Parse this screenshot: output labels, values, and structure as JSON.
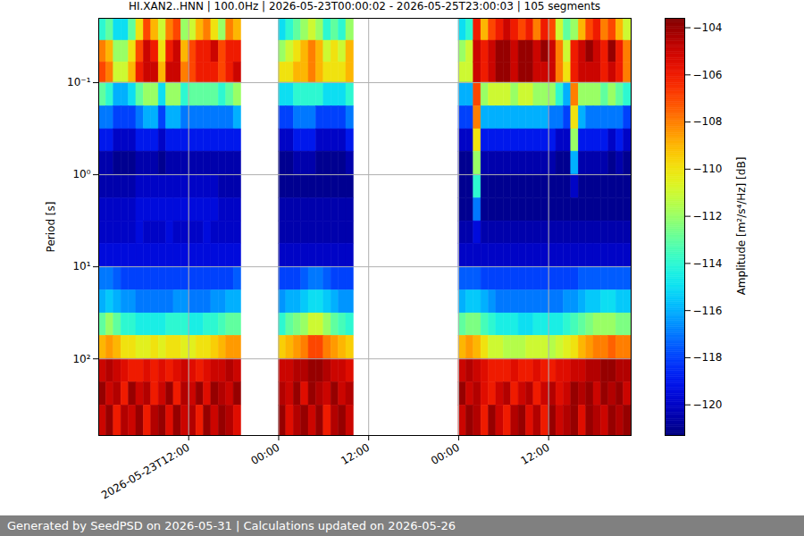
{
  "chart_data": {
    "type": "heatmap",
    "title": "HI.XAN2..HNN | 100.0Hz | 2026-05-23T00:00:02 - 2026-05-25T23:00:03 | 105 segments",
    "caption": "Generated by SeedPSD on 2026-05-31 | Calculations updated on 2026-05-26",
    "y_label": "Period [s]",
    "colorbar_label": "Amplitude [m²/s⁴/Hz] [dB]",
    "log": "y",
    "grid": true,
    "x": [
      "2026-05-23T00:00",
      "2026-05-23T01:00",
      "2026-05-23T02:00",
      "2026-05-23T03:00",
      "2026-05-23T04:00",
      "2026-05-23T05:00",
      "2026-05-23T06:00",
      "2026-05-23T07:00",
      "2026-05-23T08:00",
      "2026-05-23T09:00",
      "2026-05-23T10:00",
      "2026-05-23T11:00",
      "2026-05-23T12:00",
      "2026-05-23T13:00",
      "2026-05-23T14:00",
      "2026-05-23T15:00",
      "2026-05-23T16:00",
      "2026-05-23T17:00",
      "2026-05-23T18:00",
      "2026-05-24T00:00",
      "2026-05-24T01:00",
      "2026-05-24T02:00",
      "2026-05-24T03:00",
      "2026-05-24T04:00",
      "2026-05-24T05:00",
      "2026-05-24T06:00",
      "2026-05-24T07:00",
      "2026-05-24T08:00",
      "2026-05-24T09:00",
      "2026-05-25T00:00",
      "2026-05-25T01:00",
      "2026-05-25T02:00",
      "2026-05-25T03:00",
      "2026-05-25T04:00",
      "2026-05-25T05:00",
      "2026-05-25T06:00",
      "2026-05-25T07:00",
      "2026-05-25T08:00",
      "2026-05-25T09:00",
      "2026-05-25T10:00",
      "2026-05-25T11:00",
      "2026-05-25T12:00",
      "2026-05-25T13:00",
      "2026-05-25T14:00",
      "2026-05-25T15:00",
      "2026-05-25T16:00",
      "2026-05-25T17:00",
      "2026-05-25T18:00",
      "2026-05-25T19:00",
      "2026-05-25T20:00",
      "2026-05-25T21:00",
      "2026-05-25T22:00"
    ],
    "period_edges": [
      0.02,
      0.035,
      0.06,
      0.1,
      0.18,
      0.32,
      0.56,
      1,
      1.8,
      3.2,
      5.6,
      10,
      18,
      32,
      56,
      100,
      180,
      320,
      680
    ],
    "values": [
      [
        -114,
        -113,
        -115,
        -115,
        -113,
        -110,
        -107,
        -109,
        -111,
        -108,
        -107,
        -112,
        -111,
        -109,
        -108,
        -110,
        -112,
        -108,
        -109,
        -115,
        -114,
        -113,
        -112,
        -111,
        -112,
        -114,
        -113,
        -114,
        -112,
        -115,
        -114,
        -106,
        -109,
        -107,
        -106,
        -105,
        -106,
        -107,
        -106,
        -108,
        -106,
        -107,
        -111,
        -113,
        -112,
        -109,
        -107,
        -106,
        -108,
        -107,
        -109,
        -111
      ],
      [
        -108,
        -109,
        -112,
        -112,
        -110,
        -107,
        -105,
        -106,
        -110,
        -106,
        -105,
        -109,
        -107,
        -106,
        -106,
        -105,
        -107,
        -106,
        -106,
        -112,
        -111,
        -110,
        -109,
        -108,
        -109,
        -111,
        -110,
        -111,
        -109,
        -112,
        -111,
        -105,
        -106,
        -105,
        -104,
        -104,
        -105,
        -104,
        -104,
        -105,
        -104,
        -105,
        -108,
        -111,
        -106,
        -105,
        -104,
        -105,
        -106,
        -104,
        -106,
        -108
      ],
      [
        -107,
        -108,
        -111,
        -111,
        -109,
        -106,
        -105,
        -105,
        -109,
        -105,
        -105,
        -108,
        -107,
        -106,
        -106,
        -106,
        -107,
        -106,
        -105,
        -110,
        -110,
        -109,
        -109,
        -108,
        -109,
        -110,
        -110,
        -110,
        -109,
        -111,
        -111,
        -105,
        -106,
        -105,
        -104,
        -104,
        -105,
        -104,
        -104,
        -105,
        -105,
        -105,
        -108,
        -110,
        -106,
        -105,
        -105,
        -105,
        -106,
        -105,
        -106,
        -108
      ],
      [
        -113,
        -114,
        -116,
        -116,
        -115,
        -113,
        -112,
        -112,
        -115,
        -112,
        -112,
        -114,
        -113,
        -113,
        -113,
        -113,
        -114,
        -113,
        -112,
        -115,
        -115,
        -114,
        -114,
        -114,
        -114,
        -115,
        -115,
        -115,
        -114,
        -116,
        -116,
        -107,
        -112,
        -111,
        -111,
        -111,
        -112,
        -111,
        -111,
        -112,
        -112,
        -112,
        -114,
        -116,
        -108,
        -112,
        -112,
        -112,
        -113,
        -112,
        -113,
        -114
      ],
      [
        -117,
        -117,
        -118,
        -118,
        -118,
        -117,
        -116,
        -116,
        -118,
        -116,
        -116,
        -117,
        -117,
        -117,
        -117,
        -117,
        -117,
        -117,
        -116,
        -118,
        -118,
        -117,
        -117,
        -117,
        -118,
        -118,
        -118,
        -118,
        -117,
        -118,
        -118,
        -108,
        -116,
        -116,
        -116,
        -116,
        -116,
        -116,
        -116,
        -116,
        -116,
        -117,
        -117,
        -118,
        -110,
        -116,
        -117,
        -117,
        -117,
        -117,
        -117,
        -118
      ],
      [
        -119,
        -119,
        -120,
        -120,
        -120,
        -119,
        -119,
        -119,
        -120,
        -119,
        -119,
        -119,
        -119,
        -119,
        -119,
        -119,
        -119,
        -119,
        -119,
        -120,
        -120,
        -119,
        -119,
        -119,
        -120,
        -120,
        -120,
        -120,
        -119,
        -120,
        -120,
        -110,
        -119,
        -119,
        -119,
        -119,
        -119,
        -119,
        -119,
        -119,
        -119,
        -119,
        -120,
        -120,
        -112,
        -119,
        -119,
        -119,
        -119,
        -120,
        -119,
        -120
      ],
      [
        -120.5,
        -120.5,
        -121,
        -121,
        -121,
        -120.5,
        -120.5,
        -120.5,
        -121,
        -120.5,
        -120.5,
        -120.5,
        -120.5,
        -120.5,
        -120.5,
        -120.5,
        -120.5,
        -120.5,
        -120.5,
        -121,
        -121,
        -120.5,
        -120.5,
        -120.5,
        -121,
        -121,
        -121,
        -121,
        -120.5,
        -121,
        -121,
        -112,
        -120.5,
        -120.5,
        -120.5,
        -120.5,
        -120.5,
        -120.5,
        -120.5,
        -120.5,
        -120.5,
        -120.5,
        -121,
        -121,
        -116,
        -120.5,
        -120.5,
        -120.5,
        -120.5,
        -121,
        -120.5,
        -121
      ],
      [
        -120.5,
        -120.5,
        -120.5,
        -120.5,
        -120.5,
        -120,
        -120,
        -120,
        -120,
        -120,
        -120,
        -120,
        -120,
        -120,
        -120,
        -120,
        -120.5,
        -120.5,
        -120.5,
        -121,
        -121,
        -121,
        -121,
        -121,
        -121,
        -121,
        -121,
        -121,
        -121,
        -121,
        -121,
        -114,
        -121,
        -121,
        -121,
        -121,
        -121,
        -121,
        -121,
        -121,
        -121,
        -121,
        -121,
        -121,
        -120,
        -121,
        -121,
        -121,
        -121,
        -121,
        -121,
        -121
      ],
      [
        -120,
        -120,
        -120,
        -120,
        -120,
        -119.5,
        -119.5,
        -119.5,
        -119.5,
        -119.5,
        -119.5,
        -119.5,
        -119.5,
        -119.5,
        -119.5,
        -119.5,
        -120,
        -120,
        -120,
        -120.5,
        -120.5,
        -120.5,
        -120.5,
        -120.5,
        -120.5,
        -120.5,
        -120.5,
        -120.5,
        -120.5,
        -121,
        -121,
        -117,
        -121,
        -121,
        -121,
        -121,
        -121,
        -121,
        -121,
        -121,
        -121,
        -121,
        -121,
        -121,
        -121,
        -121,
        -121,
        -121,
        -121,
        -121,
        -121,
        -121
      ],
      [
        -120,
        -120,
        -120,
        -120,
        -120,
        -119.5,
        -120,
        -120,
        -120,
        -119.5,
        -120,
        -120,
        -120,
        -120,
        -119.5,
        -120,
        -120,
        -120,
        -120,
        -120.5,
        -120.5,
        -120.5,
        -120.5,
        -120.5,
        -120.5,
        -120.5,
        -120.5,
        -120.5,
        -120.5,
        -120.5,
        -120.5,
        -119.5,
        -120.5,
        -120.5,
        -120.5,
        -120.5,
        -120.5,
        -120.5,
        -120.5,
        -120.5,
        -120.5,
        -120.5,
        -120.5,
        -120.5,
        -120.5,
        -120.5,
        -120.5,
        -120.5,
        -120.5,
        -120.5,
        -120.5,
        -120.5
      ],
      [
        -119.5,
        -119.5,
        -119.5,
        -119.5,
        -119.5,
        -119.5,
        -119.5,
        -119.5,
        -119.5,
        -119.5,
        -119.5,
        -119.5,
        -119.5,
        -119.5,
        -119.5,
        -119.5,
        -119.5,
        -119.5,
        -119.5,
        -120,
        -120,
        -120,
        -120,
        -120,
        -120,
        -120,
        -120,
        -120,
        -120,
        -120,
        -120,
        -120,
        -120,
        -120,
        -120,
        -120,
        -120,
        -120,
        -120,
        -120,
        -120,
        -120,
        -120,
        -120,
        -120,
        -120,
        -120,
        -120,
        -120,
        -120,
        -120,
        -120
      ],
      [
        -117,
        -117,
        -117.5,
        -118,
        -118,
        -118,
        -118,
        -118,
        -118,
        -118,
        -118,
        -118,
        -118,
        -118,
        -118,
        -118,
        -118,
        -118,
        -117.5,
        -118,
        -118,
        -118,
        -117.5,
        -117,
        -117,
        -117.5,
        -118,
        -118,
        -118,
        -117.5,
        -117.5,
        -117.5,
        -118,
        -118,
        -118,
        -118,
        -118,
        -118,
        -118,
        -118,
        -118,
        -118,
        -118,
        -118,
        -118,
        -117.5,
        -117.5,
        -117.5,
        -117.5,
        -117.5,
        -117.5,
        -117.5
      ],
      [
        -116,
        -115.5,
        -116,
        -116.5,
        -116.5,
        -117,
        -117,
        -117,
        -117,
        -117,
        -116.5,
        -116.5,
        -117,
        -117,
        -117,
        -116.5,
        -116.5,
        -116,
        -116,
        -116.5,
        -116,
        -116,
        -115.5,
        -115,
        -115,
        -115.5,
        -116,
        -116.5,
        -116.5,
        -116,
        -115.5,
        -115.5,
        -116,
        -116.5,
        -117,
        -117,
        -117,
        -117,
        -117,
        -117,
        -117,
        -117,
        -117,
        -116.5,
        -116.5,
        -116,
        -115.5,
        -115.5,
        -115,
        -115,
        -115.5,
        -115.5
      ],
      [
        -113,
        -112,
        -113,
        -114,
        -114,
        -114.5,
        -114.5,
        -114.5,
        -114.5,
        -114,
        -114,
        -114,
        -114.5,
        -114.5,
        -114,
        -114,
        -113.5,
        -113,
        -113,
        -114,
        -113,
        -112.5,
        -112,
        -111,
        -111,
        -112,
        -113,
        -113.5,
        -114,
        -113,
        -112.5,
        -112.5,
        -113.5,
        -114,
        -114.5,
        -114.5,
        -114.5,
        -115,
        -115,
        -114.5,
        -114.5,
        -114.5,
        -114.5,
        -114,
        -113.5,
        -113,
        -112.5,
        -112,
        -112,
        -112,
        -112.5,
        -112.5
      ],
      [
        -109,
        -108.5,
        -109,
        -110,
        -110,
        -110.5,
        -110.5,
        -110,
        -110.5,
        -110,
        -110,
        -110.5,
        -110.5,
        -110,
        -110,
        -109.5,
        -109,
        -108.5,
        -108.5,
        -109.5,
        -109,
        -108.5,
        -108,
        -107,
        -107,
        -108,
        -108.5,
        -109,
        -109.5,
        -109,
        -108.5,
        -109,
        -110,
        -111,
        -111,
        -111.5,
        -111.5,
        -111.5,
        -111,
        -111,
        -111,
        -111.5,
        -111,
        -110.5,
        -110,
        -109,
        -108.5,
        -108,
        -108,
        -107.5,
        -108,
        -108
      ],
      [
        -105,
        -104.5,
        -105,
        -105.5,
        -106,
        -106,
        -105.5,
        -106,
        -105.5,
        -106,
        -105.5,
        -105,
        -105.5,
        -106,
        -105.5,
        -105,
        -105,
        -104.5,
        -105,
        -105,
        -105,
        -104.5,
        -104.5,
        -104,
        -104,
        -104.5,
        -105,
        -105,
        -105.5,
        -105,
        -104.5,
        -105,
        -105.5,
        -106,
        -106,
        -106,
        -105.5,
        -106,
        -106,
        -105.5,
        -106,
        -106,
        -105.5,
        -105.5,
        -105,
        -105,
        -104.5,
        -104.5,
        -104,
        -104,
        -104.5,
        -104.5
      ],
      [
        -104,
        -105,
        -104.5,
        -106,
        -104,
        -105,
        -104.5,
        -106,
        -105,
        -104,
        -106,
        -104.5,
        -105,
        -104,
        -105.5,
        -104,
        -104.5,
        -105,
        -104,
        -104.5,
        -105,
        -104,
        -105.5,
        -104,
        -104.5,
        -105,
        -104,
        -105,
        -104.5,
        -104,
        -105,
        -104.5,
        -105.5,
        -106,
        -105,
        -104.5,
        -106,
        -105,
        -104.5,
        -106,
        -105,
        -104.5,
        -105.5,
        -105,
        -104,
        -104.5,
        -104,
        -105,
        -104,
        -104.5,
        -104,
        -105
      ],
      [
        -105,
        -104,
        -106,
        -104.5,
        -105,
        -104,
        -106,
        -104.5,
        -104,
        -105.5,
        -104,
        -105,
        -104.5,
        -106,
        -104,
        -105,
        -104,
        -104.5,
        -105.5,
        -104,
        -105.5,
        -104.5,
        -104,
        -105,
        -104,
        -106,
        -104.5,
        -104,
        -105,
        -105,
        -104,
        -104.5,
        -106,
        -104,
        -105,
        -106,
        -104.5,
        -104,
        -105.5,
        -104.5,
        -106,
        -104,
        -105,
        -104.5,
        -104,
        -105.5,
        -104,
        -104.5,
        -105,
        -104,
        -104.5,
        -104
      ]
    ],
    "xlim": [
      "2026-05-23T00:00",
      "2026-05-25T23:00"
    ],
    "xticks": [
      {
        "value": "2026-05-23T12:00",
        "label": "2026-05-23T12:00"
      },
      {
        "value": "2026-05-24T00:00",
        "label": "00:00"
      },
      {
        "value": "2026-05-24T12:00",
        "label": "12:00"
      },
      {
        "value": "2026-05-25T00:00",
        "label": "00:00"
      },
      {
        "value": "2026-05-25T12:00",
        "label": "12:00"
      }
    ],
    "ylim": [
      0.02,
      680
    ],
    "yticks": [
      {
        "value": 0.1,
        "label": "10⁻¹"
      },
      {
        "value": 1,
        "label": "10⁰"
      },
      {
        "value": 10,
        "label": "10¹"
      },
      {
        "value": 100,
        "label": "10²"
      }
    ],
    "colorbar_lim": [
      -121.3,
      -103.6
    ],
    "colorbar_ticks": [
      -120,
      -118,
      -116,
      -114,
      -112,
      -110,
      -108,
      -106,
      -104
    ]
  }
}
